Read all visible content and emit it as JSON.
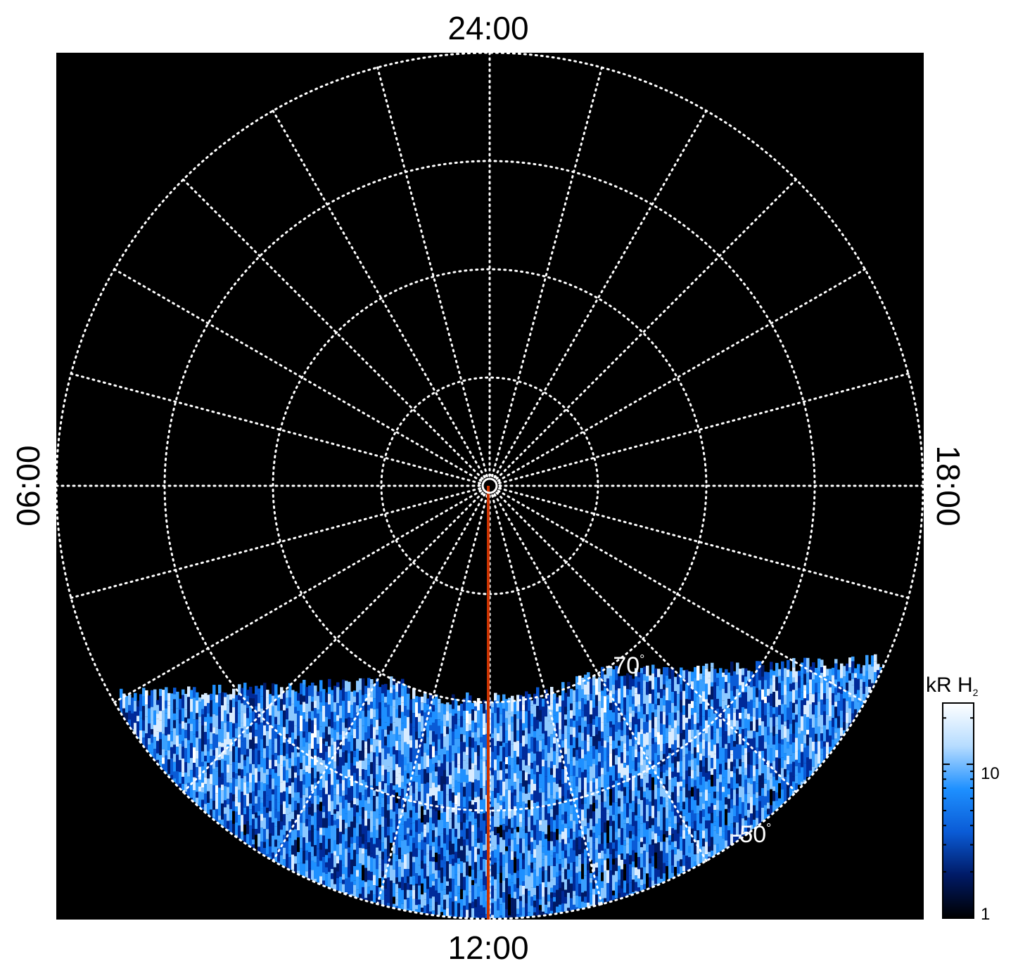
{
  "local_time_labels": {
    "top": "24:00",
    "bottom": "12:00",
    "left": "06:00",
    "right": "18:00"
  },
  "latitude_labels": {
    "inner": "-70",
    "outer": "-50",
    "degree_symbol": "°"
  },
  "grid": {
    "colatitude_rings_deg": [
      1,
      10,
      20,
      30,
      40
    ],
    "meridian_count": 24,
    "style": "dotted white"
  },
  "colorbar": {
    "title_main": "kR H",
    "title_sub": "2",
    "tick_labels": [
      "1",
      "10"
    ],
    "scale": "log",
    "range": [
      1,
      25
    ],
    "colors": [
      "#000000",
      "#001a66",
      "#0a5bd6",
      "#1e90ff",
      "#b6dcff",
      "#ffffff"
    ]
  },
  "reference_line": {
    "color": "#cc3300",
    "local_time": "12:00"
  },
  "colors": {
    "background": "#000000",
    "grid": "#ffffff",
    "emission_low": "#001a66",
    "emission_mid": "#1e90ff",
    "emission_high": "#ffffff"
  }
}
